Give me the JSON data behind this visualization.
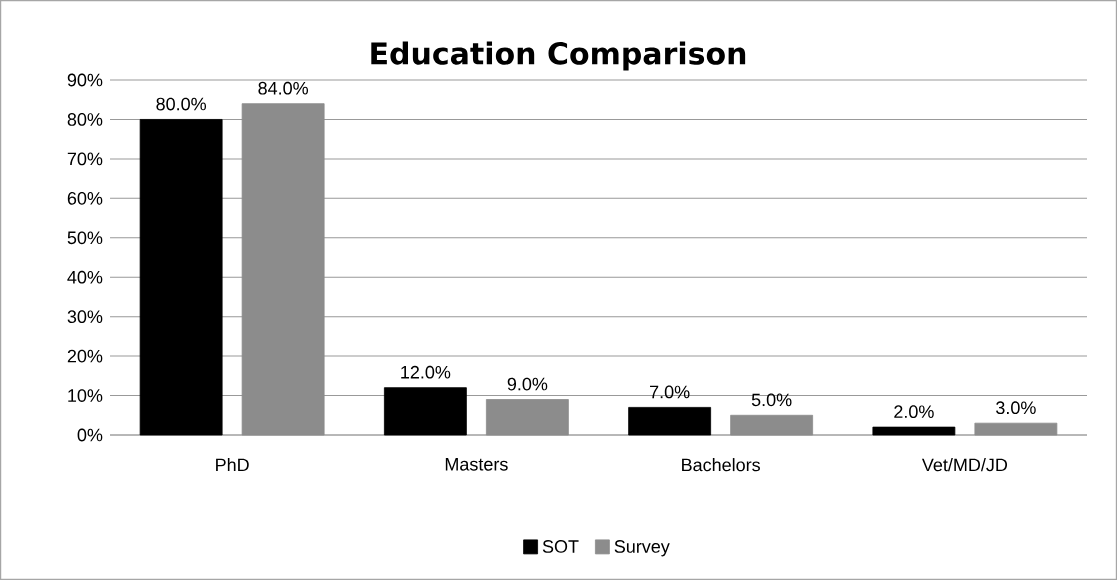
{
  "chart_data": {
    "type": "bar",
    "title": "Education Comparison",
    "categories": [
      "PhD",
      "Masters",
      "Bachelors",
      "Vet/MD/JD"
    ],
    "series": [
      {
        "name": "SOT",
        "color": "#000000",
        "values": [
          80,
          12,
          7,
          2
        ],
        "value_labels": [
          "80.0%",
          "12.0%",
          "7.0%",
          "2.0%"
        ]
      },
      {
        "name": "Survey",
        "color": "#8c8c8c",
        "values": [
          84,
          9,
          5,
          3
        ],
        "value_labels": [
          "84.0%",
          "9.0%",
          "5.0%",
          "3.0%"
        ]
      }
    ],
    "ylim": [
      0,
      90
    ],
    "yticks": [
      {
        "value": 0,
        "label": "0%"
      },
      {
        "value": 10,
        "label": "10%"
      },
      {
        "value": 20,
        "label": "20%"
      },
      {
        "value": 30,
        "label": "30%"
      },
      {
        "value": 40,
        "label": "40%"
      },
      {
        "value": 50,
        "label": "50%"
      },
      {
        "value": 60,
        "label": "60%"
      },
      {
        "value": 70,
        "label": "70%"
      },
      {
        "value": 80,
        "label": "80%"
      },
      {
        "value": 90,
        "label": "90%"
      }
    ],
    "grid": "y",
    "legend": "bottom"
  }
}
